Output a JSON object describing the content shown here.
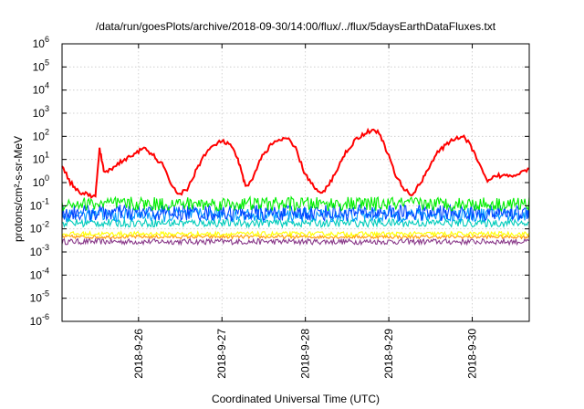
{
  "chart_data": {
    "type": "line",
    "title": "/data/run/goesPlots/archive/2018-09-30/14:00/flux/../flux/5daysEarthDataFluxes.txt",
    "xlabel": "Coordinated Universal Time (UTC)",
    "ylabel": "protons/cm²-s-sr-MeV",
    "yscale": "log",
    "ylim": [
      1e-06,
      1000000.0
    ],
    "y_tick_labels": [
      "10-6",
      "10-5",
      "10-4",
      "10-3",
      "10-2",
      "10-1",
      "100",
      "101",
      "102",
      "103",
      "104",
      "105",
      "106"
    ],
    "x_range_days": [
      "2018-9-25 02:00",
      "2018-9-30 14:00"
    ],
    "x_ticks": [
      "2018-9-26",
      "2018-9-27",
      "2018-9-28",
      "2018-9-29",
      "2018-9-30"
    ],
    "grid": true,
    "series": [
      {
        "color": "#ff0000",
        "x_days": [
          0.0,
          0.1,
          0.2,
          0.3,
          0.4,
          0.45,
          0.5,
          0.6,
          0.7,
          0.8,
          0.9,
          1.0,
          1.1,
          1.2,
          1.3,
          1.4,
          1.5,
          1.6,
          1.7,
          1.8,
          1.9,
          2.0,
          2.1,
          2.15,
          2.2,
          2.3,
          2.4,
          2.5,
          2.6,
          2.7,
          2.8,
          2.9,
          3.0,
          3.1,
          3.2,
          3.3,
          3.4,
          3.5,
          3.6,
          3.7,
          3.8,
          3.9,
          4.0,
          4.1,
          4.2,
          4.3,
          4.4,
          4.5,
          4.6,
          4.7,
          4.8,
          4.9,
          5.0,
          5.1,
          5.2,
          5.3,
          5.4,
          5.5,
          5.6
        ],
        "values": [
          6,
          1,
          0.4,
          0.3,
          0.25,
          30,
          3,
          4,
          8,
          12,
          22,
          28,
          14,
          6,
          1,
          0.3,
          0.5,
          3,
          15,
          35,
          60,
          50,
          12,
          3,
          0.6,
          2,
          15,
          40,
          70,
          80,
          30,
          3,
          0.8,
          0.3,
          0.8,
          4,
          20,
          60,
          120,
          180,
          150,
          20,
          2,
          0.5,
          0.3,
          1,
          5,
          20,
          40,
          80,
          100,
          40,
          6,
          1,
          2,
          2,
          2,
          3,
          4
        ]
      },
      {
        "color": "#00ee00",
        "level": 0.12,
        "spread": 0.6
      },
      {
        "color": "#0044ff",
        "level": 0.05,
        "spread": 0.7
      },
      {
        "color": "#0099ff",
        "level": 0.04,
        "spread": 0.6
      },
      {
        "color": "#00ccbb",
        "level": 0.018,
        "spread": 0.35
      },
      {
        "color": "#ffff00",
        "level": 0.006,
        "spread": 0.2
      },
      {
        "color": "#ff9900",
        "level": 0.0045,
        "spread": 0.15
      },
      {
        "color": "#8a3a8a",
        "level": 0.0028,
        "spread": 0.25
      }
    ]
  }
}
